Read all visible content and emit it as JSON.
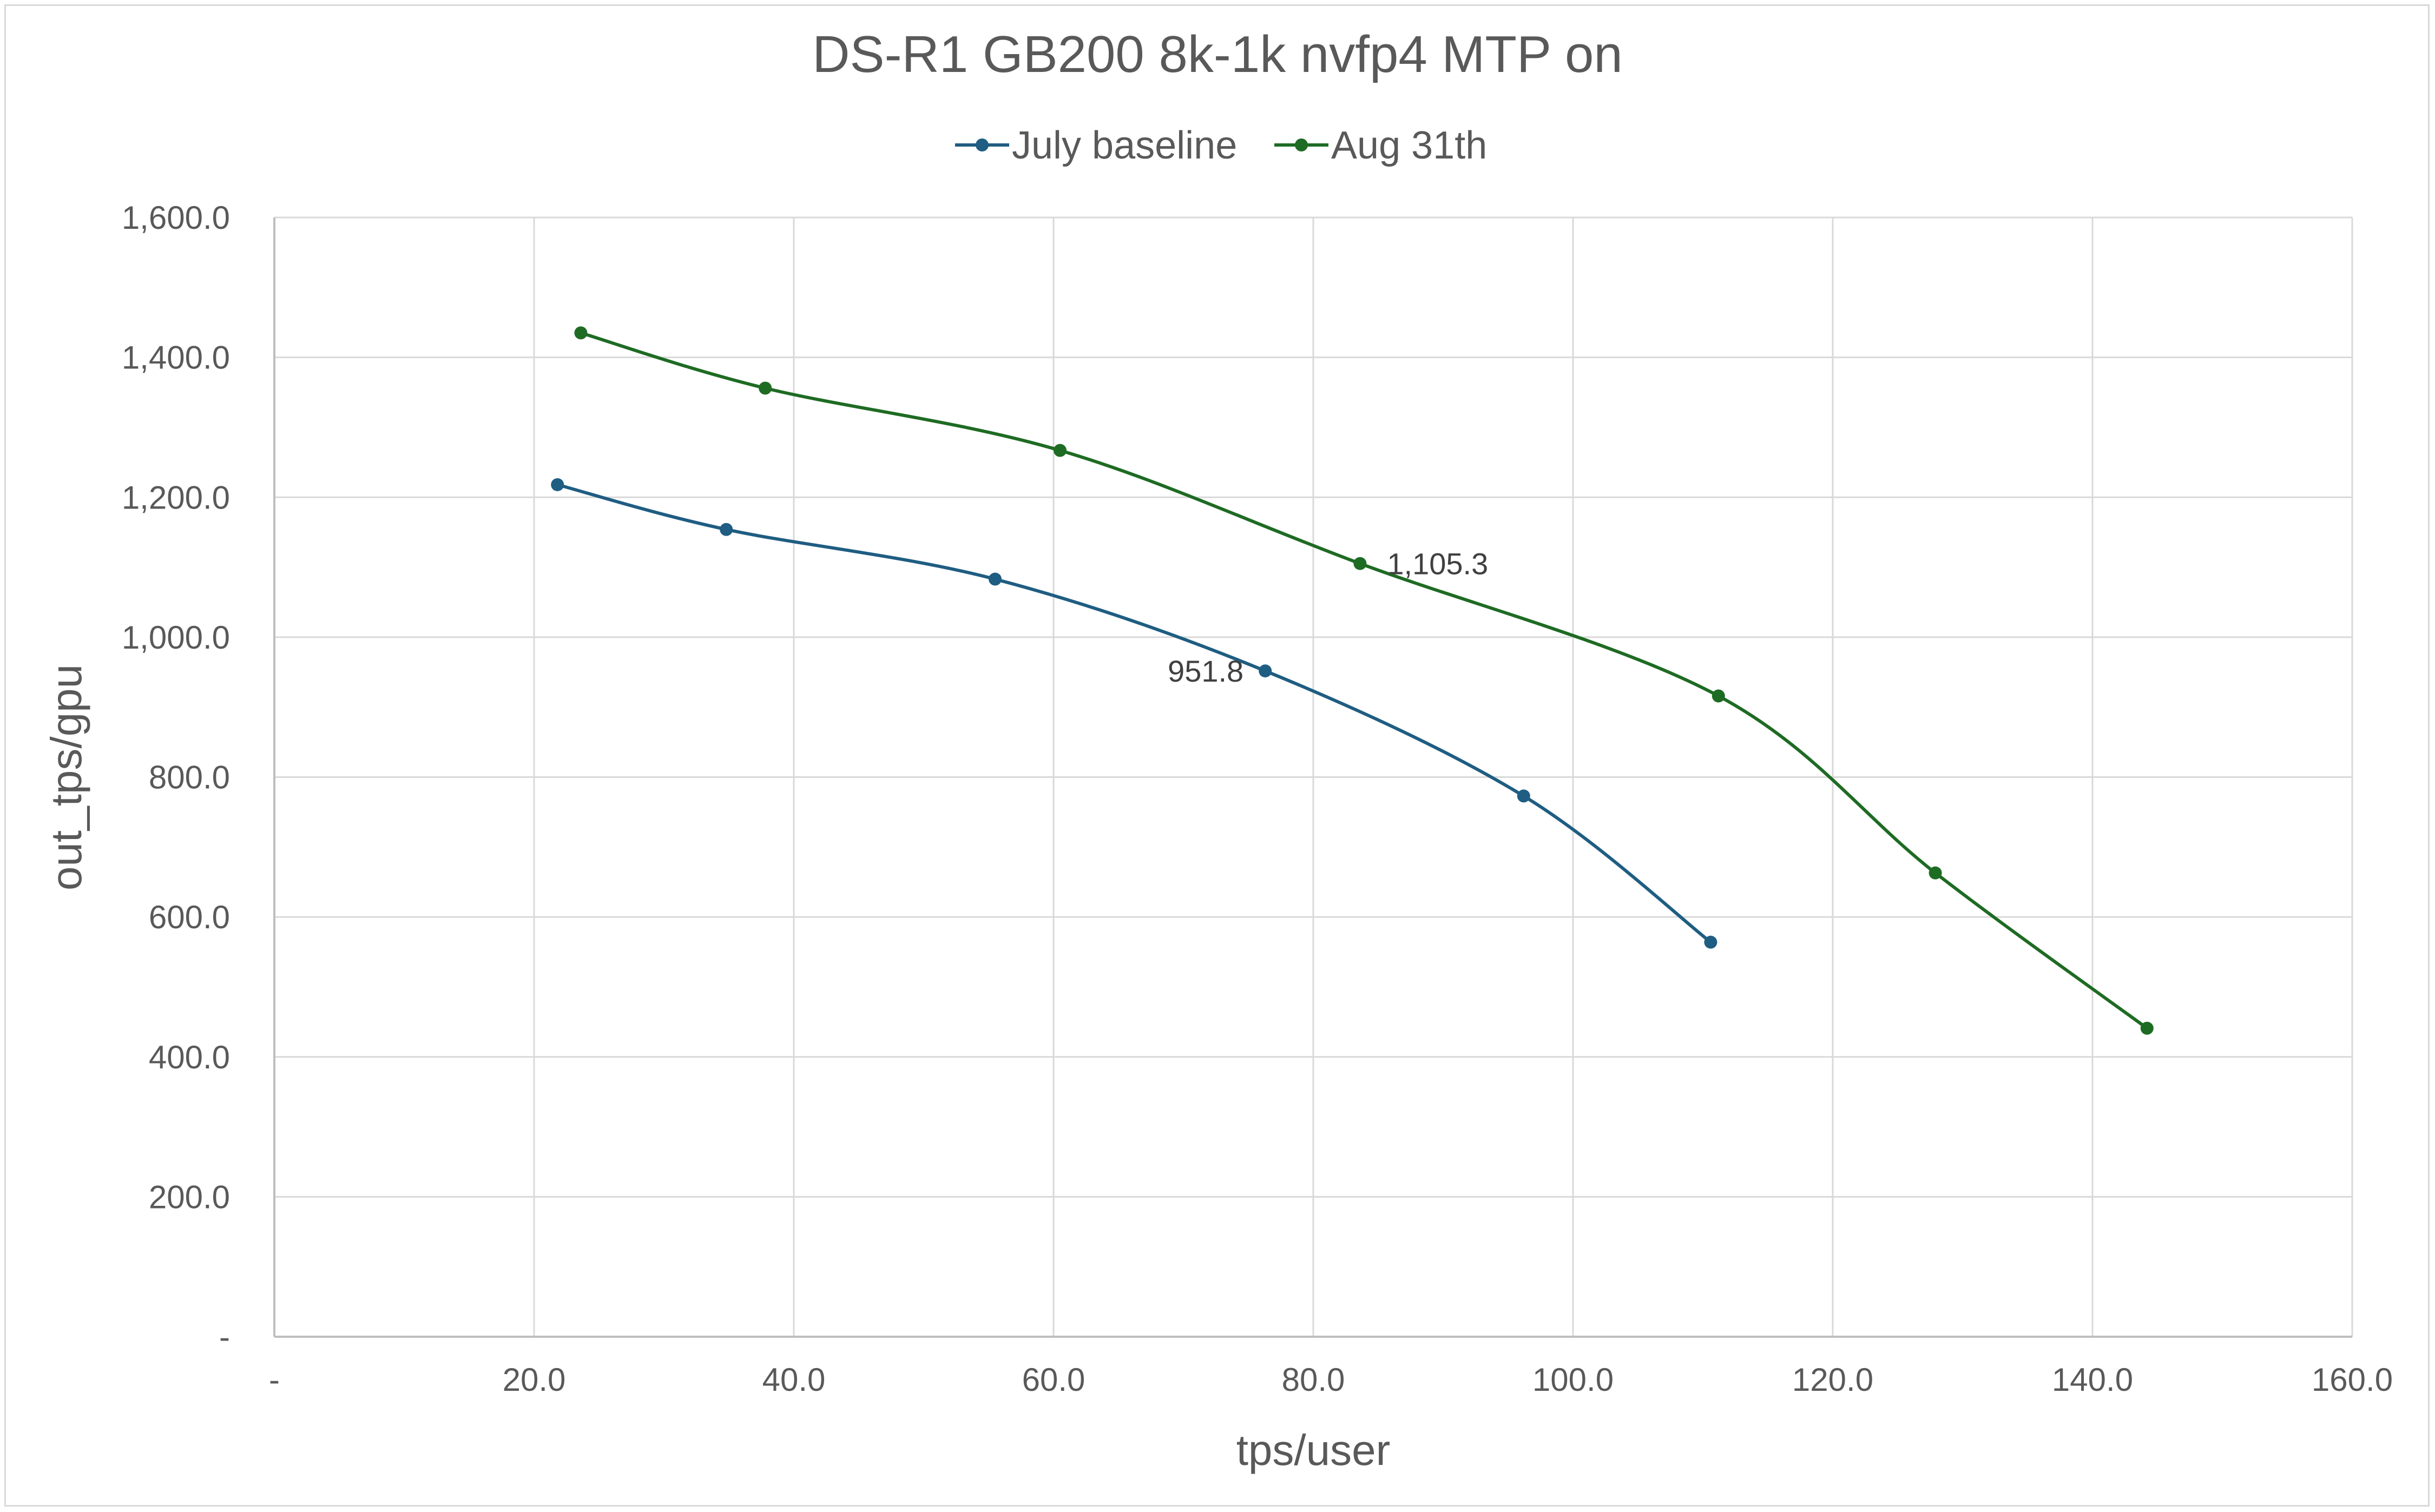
{
  "chart_data": {
    "type": "line",
    "title": "DS-R1 GB200 8k-1k nvfp4 MTP on",
    "xlabel": "tps/user",
    "ylabel": "out_tps/gpu",
    "xlim": [
      0,
      160
    ],
    "ylim": [
      0,
      1600
    ],
    "x_ticks": [
      0,
      20,
      40,
      60,
      80,
      100,
      120,
      140,
      160
    ],
    "x_tick_labels": [
      "-",
      "20.0",
      "40.0",
      "60.0",
      "80.0",
      "100.0",
      "120.0",
      "140.0",
      "160.0"
    ],
    "y_ticks": [
      0,
      200,
      400,
      600,
      800,
      1000,
      1200,
      1400,
      1600
    ],
    "y_tick_labels": [
      "-",
      "200.0",
      "400.0",
      "600.0",
      "800.0",
      "1,000.0",
      "1,200.0",
      "1,400.0",
      "1,600.0"
    ],
    "grid": true,
    "smooth": true,
    "legend_position": "top",
    "series": [
      {
        "name": "July baseline",
        "color": "#1f5d82",
        "points": [
          {
            "x": 21.8,
            "y": 1218
          },
          {
            "x": 34.8,
            "y": 1154
          },
          {
            "x": 55.5,
            "y": 1083
          },
          {
            "x": 76.3,
            "y": 951.8
          },
          {
            "x": 96.2,
            "y": 773
          },
          {
            "x": 110.6,
            "y": 564
          }
        ],
        "data_labels": [
          {
            "point_index": 3,
            "text": "951.8",
            "side": "left"
          }
        ]
      },
      {
        "name": "Aug 31th",
        "color": "#1e6b23",
        "points": [
          {
            "x": 23.6,
            "y": 1435
          },
          {
            "x": 37.8,
            "y": 1356
          },
          {
            "x": 60.5,
            "y": 1267
          },
          {
            "x": 83.6,
            "y": 1105.3
          },
          {
            "x": 111.2,
            "y": 916
          },
          {
            "x": 127.9,
            "y": 663
          },
          {
            "x": 144.2,
            "y": 441
          }
        ],
        "data_labels": [
          {
            "point_index": 3,
            "text": "1,105.3",
            "side": "right"
          }
        ]
      }
    ]
  }
}
